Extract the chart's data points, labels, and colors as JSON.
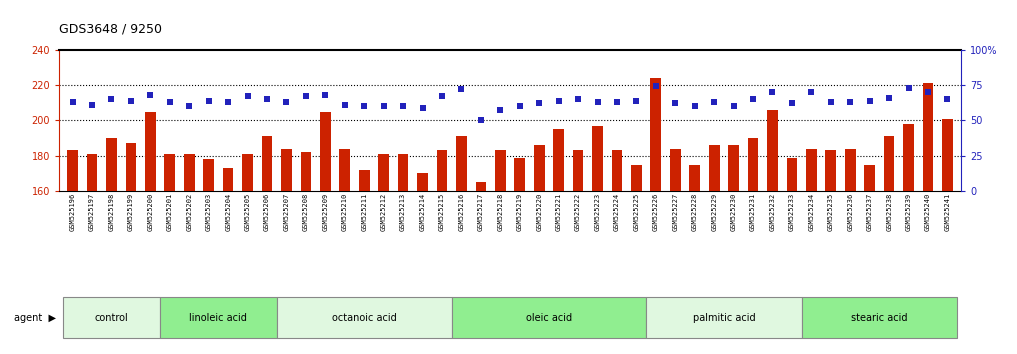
{
  "title": "GDS3648 / 9250",
  "samples": [
    "GSM525196",
    "GSM525197",
    "GSM525198",
    "GSM525199",
    "GSM525200",
    "GSM525201",
    "GSM525202",
    "GSM525203",
    "GSM525204",
    "GSM525205",
    "GSM525206",
    "GSM525207",
    "GSM525208",
    "GSM525209",
    "GSM525210",
    "GSM525211",
    "GSM525212",
    "GSM525213",
    "GSM525214",
    "GSM525215",
    "GSM525216",
    "GSM525217",
    "GSM525218",
    "GSM525219",
    "GSM525220",
    "GSM525221",
    "GSM525222",
    "GSM525223",
    "GSM525224",
    "GSM525225",
    "GSM525226",
    "GSM525227",
    "GSM525228",
    "GSM525229",
    "GSM525230",
    "GSM525231",
    "GSM525232",
    "GSM525233",
    "GSM525234",
    "GSM525235",
    "GSM525236",
    "GSM525237",
    "GSM525238",
    "GSM525239",
    "GSM525240",
    "GSM525241"
  ],
  "bar_values": [
    183,
    181,
    190,
    187,
    205,
    181,
    181,
    178,
    173,
    181,
    191,
    184,
    182,
    205,
    184,
    172,
    181,
    181,
    170,
    183,
    191,
    165,
    183,
    179,
    186,
    195,
    183,
    197,
    183,
    175,
    224,
    184,
    175,
    186,
    186,
    190,
    206,
    179,
    184,
    183,
    184,
    175,
    191,
    198,
    221,
    201
  ],
  "blue_values": [
    63,
    61,
    65,
    64,
    68,
    63,
    60,
    64,
    63,
    67,
    65,
    63,
    67,
    68,
    61,
    60,
    60,
    60,
    59,
    67,
    72,
    50,
    57,
    60,
    62,
    64,
    65,
    63,
    63,
    64,
    74,
    62,
    60,
    63,
    60,
    65,
    70,
    62,
    70,
    63,
    63,
    64,
    66,
    73,
    70,
    65
  ],
  "groups": [
    {
      "label": "control",
      "start": 0,
      "end": 5
    },
    {
      "label": "linoleic acid",
      "start": 5,
      "end": 11
    },
    {
      "label": "octanoic acid",
      "start": 11,
      "end": 20
    },
    {
      "label": "oleic acid",
      "start": 20,
      "end": 30
    },
    {
      "label": "palmitic acid",
      "start": 30,
      "end": 38
    },
    {
      "label": "stearic acid",
      "start": 38,
      "end": 46
    }
  ],
  "ylim_left": [
    160,
    240
  ],
  "ylim_right": [
    0,
    100
  ],
  "yticks_left": [
    160,
    180,
    200,
    220,
    240
  ],
  "yticks_right": [
    0,
    25,
    50,
    75,
    100
  ],
  "ytick_labels_right": [
    "0",
    "25",
    "50",
    "75",
    "100%"
  ],
  "bar_color": "#cc2200",
  "blue_color": "#2222bb",
  "plot_bg": "#ffffff",
  "xtick_bg": "#d0d0d0",
  "group_colors": [
    "#e0f8e0",
    "#90ee90"
  ],
  "title_fontsize": 9,
  "tick_fontsize": 7,
  "label_fontsize": 7
}
